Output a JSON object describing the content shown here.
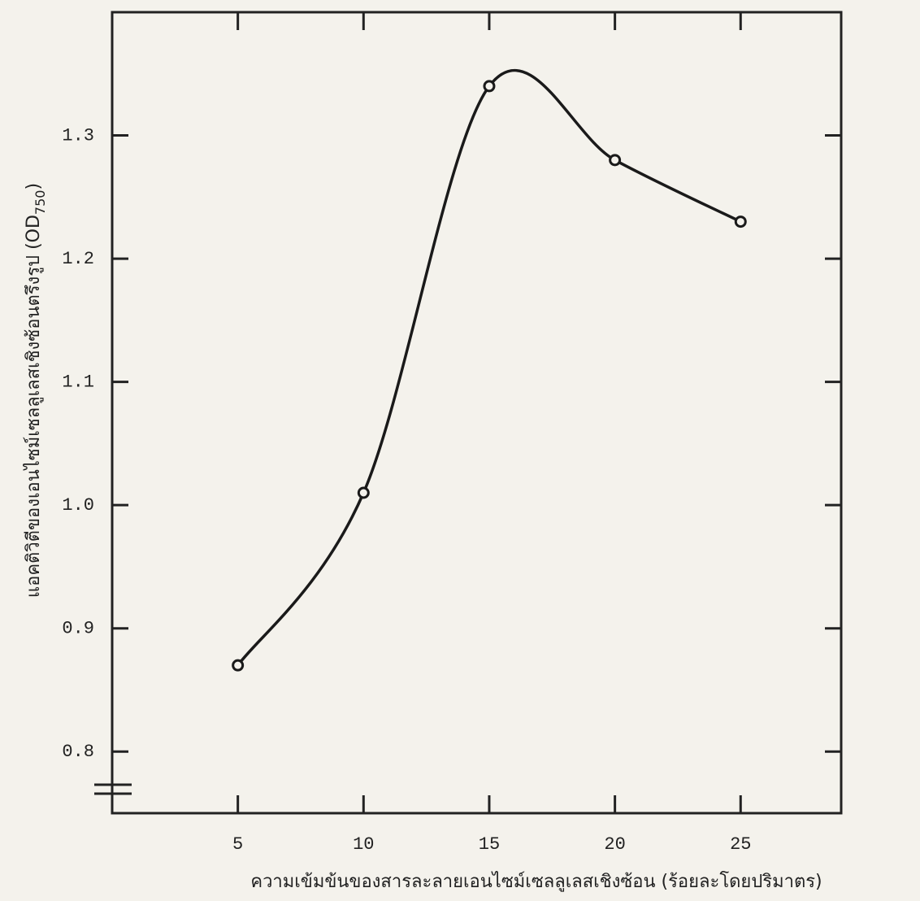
{
  "chart_data": {
    "type": "line",
    "x_label": "ความเข้มข้นของสารละลายเอนไซม์เซลลูเลสเชิงซ้อน (ร้อยละโดยปริมาตร)",
    "y_label_parts": [
      "แอคติวิตีของเอนไซม์เซลลูเลสเชิงซ้อนตรึงรูป (OD",
      "750",
      ")"
    ],
    "x": [
      5,
      10,
      15,
      20,
      25
    ],
    "values": [
      0.87,
      1.01,
      1.34,
      1.28,
      1.23
    ],
    "color": "#1a1a1a",
    "xlim": [
      0,
      29
    ],
    "xticks": [
      5,
      10,
      15,
      20,
      25
    ],
    "ylim": [
      0.75,
      1.4
    ],
    "yticks": [
      0.8,
      0.9,
      {
        "value": 1,
        "label": "1.0"
      },
      1.1,
      1.2,
      1.3
    ],
    "grid": false,
    "smooth": true
  }
}
